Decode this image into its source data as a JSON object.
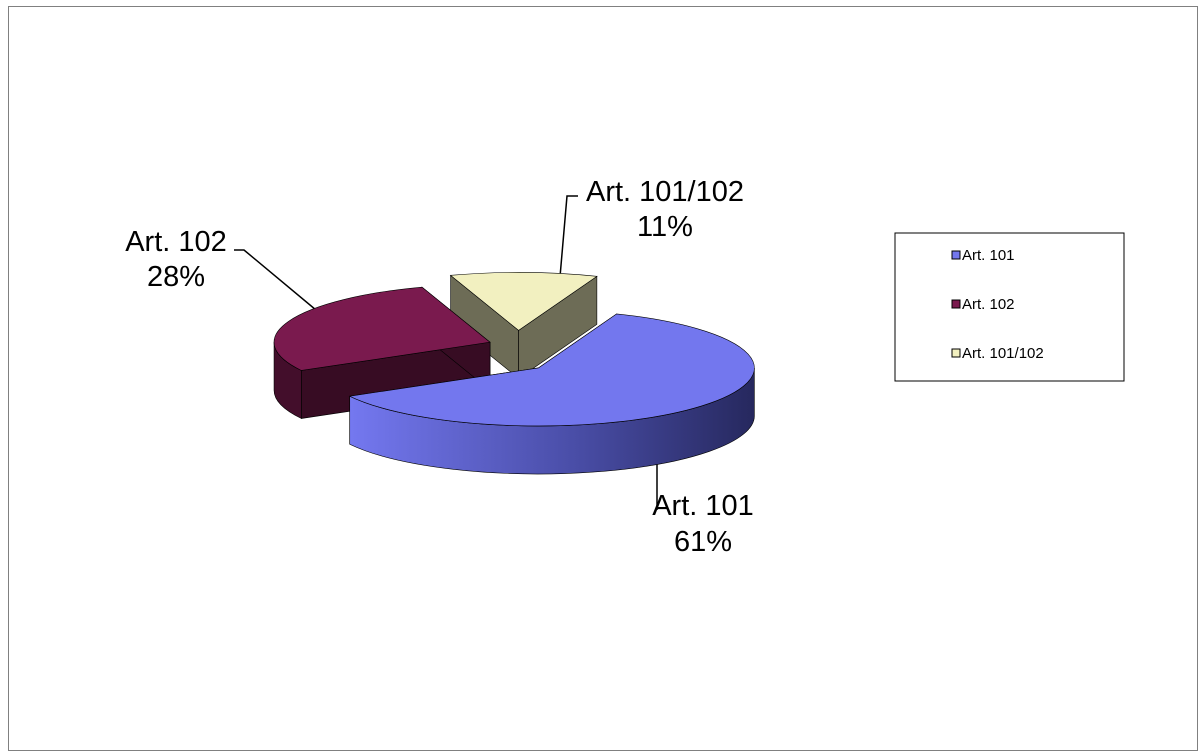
{
  "chart_data": {
    "type": "pie",
    "title": "",
    "categories": [
      "Art. 101",
      "Art. 102",
      "Art. 101/102"
    ],
    "values": [
      61,
      28,
      11
    ],
    "units": "%",
    "data_labels": [
      {
        "name": "Art. 101",
        "value": "61%"
      },
      {
        "name": "Art. 102",
        "value": "28%"
      },
      {
        "name": "Art. 101/102",
        "value": "11%"
      }
    ],
    "colors": [
      "#7377EE",
      "#7A1A4E",
      "#F2F0C0"
    ],
    "legend": {
      "placement": "right",
      "entries": [
        "Art. 101",
        "Art. 102",
        "Art. 101/102"
      ]
    },
    "style": "3d-exploded"
  }
}
